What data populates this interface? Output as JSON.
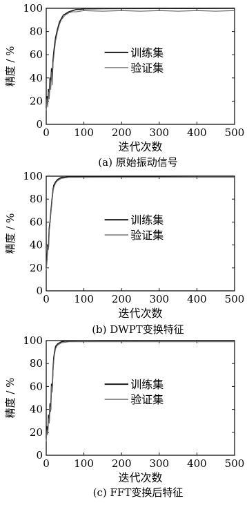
{
  "chart_data": [
    {
      "type": "line",
      "caption": "(a) 原始振动信号",
      "xlabel": "迭代次数",
      "ylabel": "精度 / %",
      "xlim": [
        0,
        500
      ],
      "ylim": [
        0,
        100
      ],
      "xticks": [
        0,
        100,
        200,
        300,
        400,
        500
      ],
      "yticks": [
        0,
        20,
        40,
        60,
        80,
        100
      ],
      "legend": "center",
      "series": [
        {
          "name": "训练集",
          "color": "#1a1a1a",
          "x": [
            0,
            2,
            4,
            6,
            8,
            10,
            12,
            14,
            16,
            18,
            20,
            22,
            25,
            30,
            35,
            40,
            45,
            50,
            60,
            70,
            80,
            90,
            100,
            120,
            150,
            200,
            300,
            400,
            500
          ],
          "y": [
            14,
            24,
            18,
            30,
            26,
            40,
            36,
            48,
            40,
            55,
            62,
            68,
            75,
            82,
            88,
            91,
            94,
            95,
            97,
            98,
            99,
            99,
            99.5,
            99.6,
            99.7,
            99.8,
            99.9,
            99.9,
            100
          ]
        },
        {
          "name": "验证集",
          "color": "#666666",
          "x": [
            0,
            2,
            4,
            6,
            8,
            10,
            12,
            14,
            16,
            18,
            20,
            22,
            25,
            30,
            35,
            40,
            45,
            50,
            60,
            70,
            80,
            100,
            150,
            200,
            250,
            300,
            350,
            400,
            450,
            500
          ],
          "y": [
            12,
            22,
            15,
            28,
            22,
            38,
            30,
            45,
            34,
            52,
            58,
            64,
            72,
            80,
            86,
            90,
            92,
            94,
            96,
            97,
            97,
            98,
            97.5,
            98,
            97.5,
            98,
            97.5,
            98,
            97.5,
            98
          ]
        }
      ]
    },
    {
      "type": "line",
      "caption": "(b) DWPT变换特征",
      "xlabel": "迭代次数",
      "ylabel": "精度 / %",
      "xlim": [
        0,
        500
      ],
      "ylim": [
        0,
        100
      ],
      "xticks": [
        0,
        100,
        200,
        300,
        400,
        500
      ],
      "yticks": [
        0,
        20,
        40,
        60,
        80,
        100
      ],
      "legend": "center",
      "series": [
        {
          "name": "训练集",
          "color": "#1a1a1a",
          "x": [
            0,
            2,
            4,
            6,
            8,
            10,
            12,
            14,
            16,
            18,
            20,
            25,
            30,
            35,
            40,
            50,
            60,
            80,
            100,
            150,
            200,
            300,
            400,
            500
          ],
          "y": [
            20,
            28,
            40,
            38,
            55,
            60,
            68,
            75,
            82,
            88,
            92,
            95,
            97,
            98,
            99,
            99,
            99.5,
            99.5,
            99.7,
            99.8,
            99.9,
            99.9,
            100,
            100
          ]
        },
        {
          "name": "验证集",
          "color": "#666666",
          "x": [
            0,
            2,
            4,
            6,
            8,
            10,
            12,
            14,
            16,
            18,
            20,
            25,
            30,
            35,
            40,
            50,
            60,
            80,
            100,
            150,
            200,
            300,
            400,
            500
          ],
          "y": [
            18,
            26,
            38,
            36,
            52,
            58,
            66,
            73,
            80,
            86,
            90,
            94,
            96,
            97,
            98,
            98.5,
            99,
            99,
            99,
            99,
            99,
            99,
            99,
            99
          ]
        }
      ]
    },
    {
      "type": "line",
      "caption": "(c) FFT变换后特征",
      "xlabel": "迭代次数",
      "ylabel": "精度 / %",
      "xlim": [
        0,
        500
      ],
      "ylim": [
        0,
        100
      ],
      "xticks": [
        0,
        100,
        200,
        300,
        400,
        500
      ],
      "yticks": [
        0,
        20,
        40,
        60,
        80,
        100
      ],
      "legend": "center",
      "series": [
        {
          "name": "训练集",
          "color": "#1a1a1a",
          "x": [
            0,
            2,
            4,
            6,
            8,
            10,
            12,
            14,
            16,
            18,
            20,
            22,
            25,
            30,
            35,
            40,
            50,
            60,
            80,
            100,
            150,
            200,
            300,
            400,
            500
          ],
          "y": [
            15,
            25,
            20,
            35,
            30,
            45,
            40,
            62,
            58,
            75,
            85,
            90,
            95,
            97,
            98,
            99,
            99.5,
            99.5,
            99.7,
            99.8,
            99.9,
            99.9,
            100,
            100,
            100
          ]
        },
        {
          "name": "验证集",
          "color": "#666666",
          "x": [
            0,
            2,
            4,
            6,
            8,
            10,
            12,
            14,
            16,
            18,
            20,
            22,
            25,
            30,
            35,
            40,
            50,
            60,
            80,
            100,
            150,
            200,
            300,
            400,
            500
          ],
          "y": [
            12,
            22,
            18,
            32,
            28,
            42,
            38,
            60,
            55,
            72,
            82,
            88,
            93,
            96,
            97,
            98,
            98.5,
            99,
            99,
            99,
            99,
            99,
            99,
            99,
            99
          ]
        }
      ]
    }
  ]
}
